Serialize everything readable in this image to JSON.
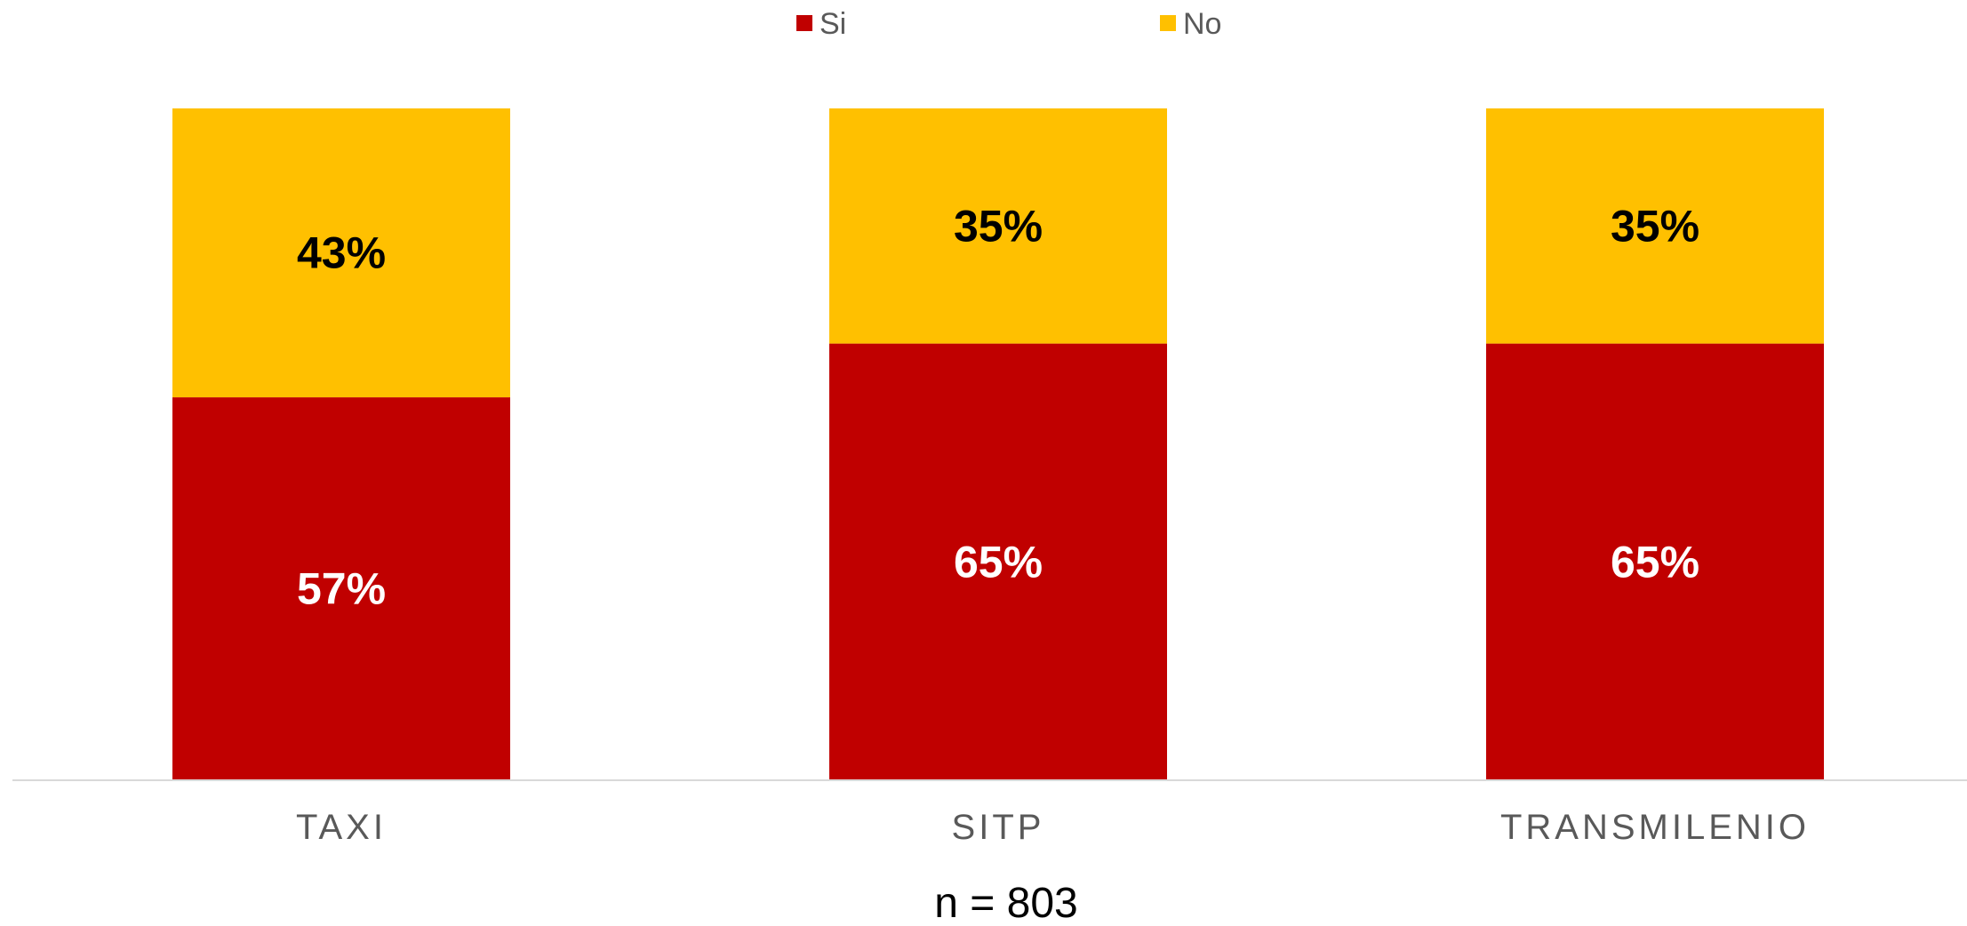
{
  "chart_data": {
    "type": "bar",
    "stacked": true,
    "percent": true,
    "categories": [
      "TAXI",
      "SITP",
      "TRANSMILENIO"
    ],
    "series": [
      {
        "name": "Si",
        "color": "#C00000",
        "label_color": "#FFFFFF",
        "values": [
          57,
          65,
          65
        ],
        "labels": [
          "57%",
          "65%",
          "65%"
        ]
      },
      {
        "name": "No",
        "color": "#FFC000",
        "label_color": "#000000",
        "values": [
          43,
          35,
          35
        ],
        "labels": [
          "43%",
          "35%",
          "35%"
        ]
      }
    ],
    "ylim": [
      0,
      100
    ],
    "legend_position": "top-center",
    "grid": false,
    "note": "n = 803"
  }
}
